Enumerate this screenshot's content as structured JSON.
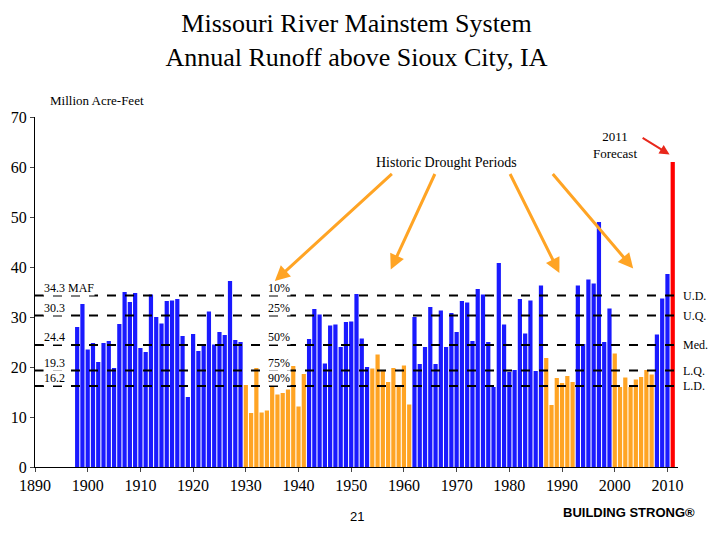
{
  "chart_data": {
    "type": "bar",
    "title": "Missouri River Mainstem System\nAnnual Runoff above Sioux City, IA",
    "y_label": "Million Acre-Feet",
    "x": [
      1898,
      1899,
      1900,
      1901,
      1902,
      1903,
      1904,
      1905,
      1906,
      1907,
      1908,
      1909,
      1910,
      1911,
      1912,
      1913,
      1914,
      1915,
      1916,
      1917,
      1918,
      1919,
      1920,
      1921,
      1922,
      1923,
      1924,
      1925,
      1926,
      1927,
      1928,
      1929,
      1930,
      1931,
      1932,
      1933,
      1934,
      1935,
      1936,
      1937,
      1938,
      1939,
      1940,
      1941,
      1942,
      1943,
      1944,
      1945,
      1946,
      1947,
      1948,
      1949,
      1950,
      1951,
      1952,
      1953,
      1954,
      1955,
      1956,
      1957,
      1958,
      1959,
      1960,
      1961,
      1962,
      1963,
      1964,
      1965,
      1966,
      1967,
      1968,
      1969,
      1970,
      1971,
      1972,
      1973,
      1974,
      1975,
      1976,
      1977,
      1978,
      1979,
      1980,
      1981,
      1982,
      1983,
      1984,
      1985,
      1986,
      1987,
      1988,
      1989,
      1990,
      1991,
      1992,
      1993,
      1994,
      1995,
      1996,
      1997,
      1998,
      1999,
      2000,
      2001,
      2002,
      2003,
      2004,
      2005,
      2006,
      2007,
      2008,
      2009,
      2010,
      2011
    ],
    "values": [
      28.0,
      32.6,
      23.5,
      24.8,
      21.0,
      24.8,
      25.2,
      19.8,
      28.6,
      35.0,
      33.0,
      34.8,
      23.8,
      23.0,
      34.5,
      30.0,
      28.7,
      33.2,
      33.3,
      33.6,
      26.2,
      14.0,
      26.6,
      23.2,
      24.4,
      31.1,
      24.5,
      27.0,
      26.4,
      37.2,
      25.4,
      25.0,
      16.4,
      10.8,
      19.8,
      10.9,
      11.3,
      16.0,
      14.5,
      14.8,
      15.5,
      20.2,
      12.1,
      18.6,
      25.6,
      31.6,
      30.5,
      20.7,
      28.3,
      28.5,
      24.0,
      29.0,
      29.1,
      34.6,
      25.7,
      20.0,
      19.7,
      22.5,
      19.3,
      17.0,
      19.8,
      16.0,
      20.3,
      12.5,
      30.0,
      20.6,
      24.0,
      32.0,
      20.6,
      31.3,
      24.0,
      30.8,
      27.0,
      33.2,
      32.9,
      25.2,
      35.6,
      34.5,
      25.0,
      16.0,
      40.8,
      28.5,
      19.0,
      19.4,
      33.6,
      26.7,
      33.3,
      19.2,
      36.3,
      21.8,
      12.4,
      17.8,
      16.8,
      18.2,
      17.0,
      36.3,
      24.6,
      37.5,
      36.7,
      49.0,
      25.0,
      31.7,
      22.7,
      16.0,
      17.9,
      16.0,
      17.5,
      18.0,
      19.4,
      18.5,
      26.5,
      33.7,
      38.6,
      61.0
    ],
    "colors": [
      "#1a1aff",
      "#1a1aff",
      "#1a1aff",
      "#1a1aff",
      "#1a1aff",
      "#1a1aff",
      "#1a1aff",
      "#1a1aff",
      "#1a1aff",
      "#1a1aff",
      "#1a1aff",
      "#1a1aff",
      "#1a1aff",
      "#1a1aff",
      "#1a1aff",
      "#1a1aff",
      "#1a1aff",
      "#1a1aff",
      "#1a1aff",
      "#1a1aff",
      "#1a1aff",
      "#1a1aff",
      "#1a1aff",
      "#1a1aff",
      "#1a1aff",
      "#1a1aff",
      "#1a1aff",
      "#1a1aff",
      "#1a1aff",
      "#1a1aff",
      "#1a1aff",
      "#1a1aff",
      "#ffa424",
      "#ffa424",
      "#ffa424",
      "#ffa424",
      "#ffa424",
      "#ffa424",
      "#ffa424",
      "#ffa424",
      "#ffa424",
      "#ffa424",
      "#ffa424",
      "#ffa424",
      "#1a1aff",
      "#1a1aff",
      "#1a1aff",
      "#1a1aff",
      "#1a1aff",
      "#1a1aff",
      "#1a1aff",
      "#1a1aff",
      "#1a1aff",
      "#1a1aff",
      "#1a1aff",
      "#1a1aff",
      "#ffa424",
      "#ffa424",
      "#ffa424",
      "#ffa424",
      "#ffa424",
      "#ffa424",
      "#ffa424",
      "#ffa424",
      "#1a1aff",
      "#1a1aff",
      "#1a1aff",
      "#1a1aff",
      "#1a1aff",
      "#1a1aff",
      "#1a1aff",
      "#1a1aff",
      "#1a1aff",
      "#1a1aff",
      "#1a1aff",
      "#1a1aff",
      "#1a1aff",
      "#1a1aff",
      "#1a1aff",
      "#1a1aff",
      "#1a1aff",
      "#1a1aff",
      "#1a1aff",
      "#1a1aff",
      "#1a1aff",
      "#1a1aff",
      "#1a1aff",
      "#1a1aff",
      "#1a1aff",
      "#ffa424",
      "#ffa424",
      "#ffa424",
      "#ffa424",
      "#ffa424",
      "#ffa424",
      "#1a1aff",
      "#1a1aff",
      "#1a1aff",
      "#1a1aff",
      "#1a1aff",
      "#1a1aff",
      "#1a1aff",
      "#ffa424",
      "#ffa424",
      "#ffa424",
      "#ffa424",
      "#ffa424",
      "#ffa424",
      "#ffa424",
      "#ffa424",
      "#1a1aff",
      "#1a1aff",
      "#1a1aff",
      "#ff0000"
    ],
    "xlim": [
      1890,
      2012
    ],
    "xticks": [
      1890,
      1900,
      1910,
      1920,
      1930,
      1940,
      1950,
      1960,
      1970,
      1980,
      1990,
      2000,
      2010
    ],
    "ylim": [
      0,
      70
    ],
    "yticks": [
      0,
      10,
      20,
      30,
      40,
      50,
      60,
      70
    ],
    "grid": false,
    "reference_lines": [
      {
        "value": 34.3,
        "label": "34.3 MAF",
        "percentile": "10%",
        "code": "U.D."
      },
      {
        "value": 30.3,
        "label": "30.3",
        "percentile": "25%",
        "code": "U.Q."
      },
      {
        "value": 24.4,
        "label": "24.4",
        "percentile": "50%",
        "code": "Med."
      },
      {
        "value": 19.3,
        "label": "19.3",
        "percentile": "75%",
        "code": "L.Q."
      },
      {
        "value": 16.2,
        "label": "16.2",
        "percentile": "90%",
        "code": "L.D."
      }
    ],
    "annotations": {
      "drought": "Historic Drought Periods",
      "forecast": "2011\nForecast"
    },
    "footer": {
      "page": "21",
      "brand": "BUILDING STRONG®"
    }
  }
}
